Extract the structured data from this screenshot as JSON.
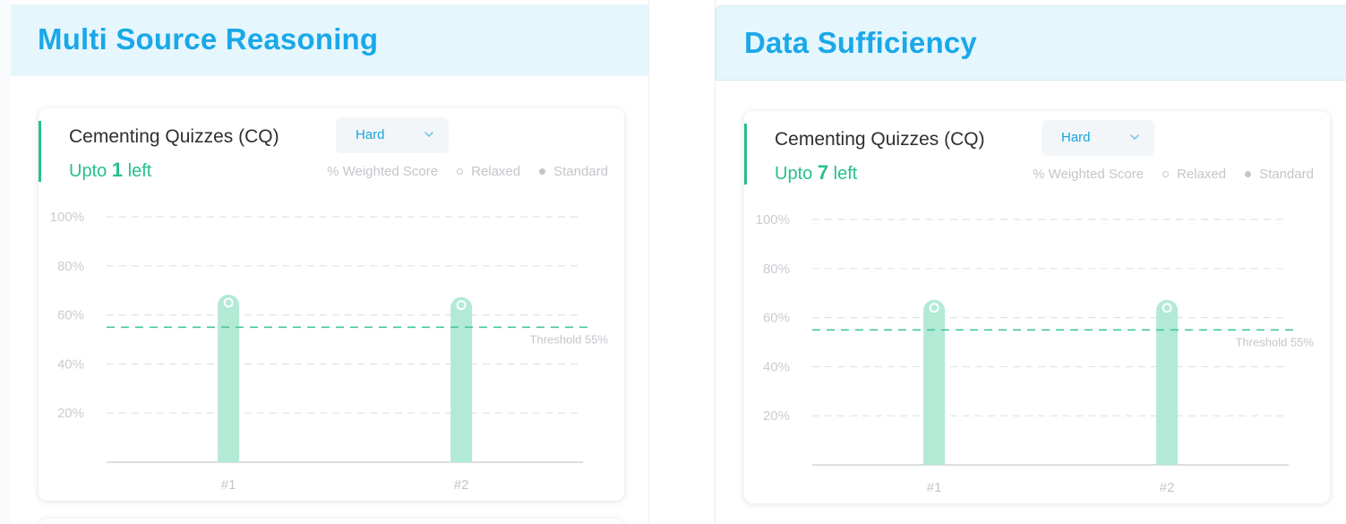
{
  "colors": {
    "header_bg": "#e6f6fd",
    "title": "#1aa8e8",
    "accent_green": "#27bf8e",
    "bar": "#b3ead5",
    "threshold": "#47c79a",
    "grid": "#dfe2e6",
    "muted_text": "#c3c6ca"
  },
  "panels": [
    {
      "title": "Multi Source Reasoning",
      "card": {
        "title": "Cementing Quizzes (CQ)",
        "difficulty": {
          "selected": "Hard",
          "icon": "chevron-down-icon"
        },
        "left": {
          "prefix": "Upto",
          "count": "1",
          "suffix": "left"
        },
        "legend": {
          "metric": "% Weighted Score",
          "relaxed": "Relaxed",
          "standard": "Standard"
        },
        "chart_data": {
          "type": "bar",
          "categories": [
            "#1",
            "#2"
          ],
          "series": [
            {
              "name": "Relaxed",
              "values": [
                65,
                64
              ]
            }
          ],
          "yticks": [
            "100%",
            "80%",
            "60%",
            "40%",
            "20%"
          ],
          "ylim": [
            0,
            100
          ],
          "threshold": {
            "value": 55,
            "label": "Threshold 55%"
          },
          "grid": true
        }
      }
    },
    {
      "title": "Data Sufficiency",
      "card": {
        "title": "Cementing Quizzes (CQ)",
        "difficulty": {
          "selected": "Hard",
          "icon": "chevron-down-icon"
        },
        "left": {
          "prefix": "Upto",
          "count": "7",
          "suffix": "left"
        },
        "legend": {
          "metric": "% Weighted Score",
          "relaxed": "Relaxed",
          "standard": "Standard"
        },
        "chart_data": {
          "type": "bar",
          "categories": [
            "#1",
            "#2"
          ],
          "series": [
            {
              "name": "Relaxed",
              "values": [
                64,
                64
              ]
            }
          ],
          "yticks": [
            "100%",
            "80%",
            "60%",
            "40%",
            "20%"
          ],
          "ylim": [
            0,
            100
          ],
          "threshold": {
            "value": 55,
            "label": "Threshold 55%"
          },
          "grid": true
        }
      }
    }
  ]
}
